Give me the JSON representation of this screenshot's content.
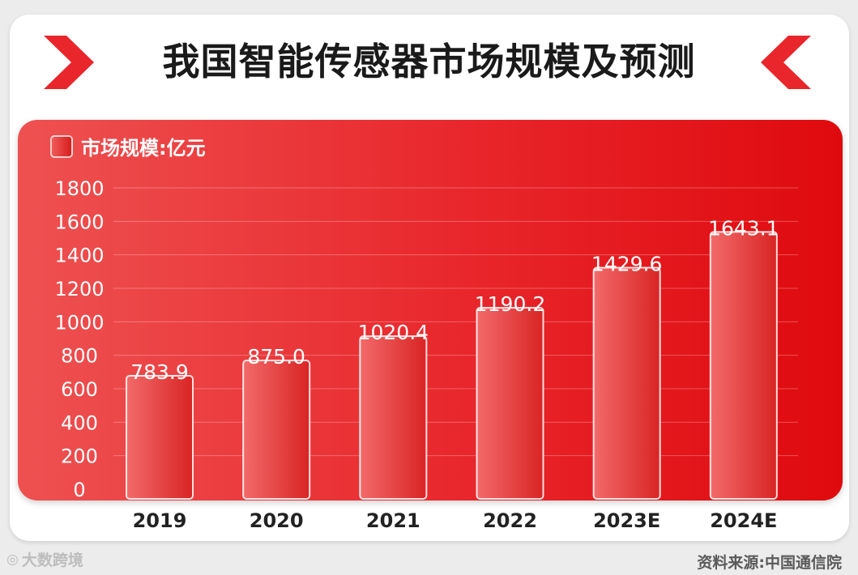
{
  "title": "我国智能传感器市场规模及预测",
  "legend": {
    "label": "市场规模:亿元"
  },
  "source": "资料来源:中国通信院",
  "watermark": {
    "icon": "camera-icon",
    "text": "大数跨境"
  },
  "colors": {
    "accent": "#e8262b",
    "title": "#1a1a1a"
  },
  "chart_data": {
    "type": "bar",
    "title": "我国智能传感器市场规模及预测",
    "categories": [
      "2019",
      "2020",
      "2021",
      "2022",
      "2023E",
      "2024E"
    ],
    "series": [
      {
        "name": "市场规模:亿元",
        "values": [
          783.9,
          875.0,
          1020.4,
          1190.2,
          1429.6,
          1643.1
        ]
      }
    ],
    "data_labels": [
      "783.9",
      "875.0",
      "1020.4",
      "1190.2",
      "1429.6",
      "1643.1"
    ],
    "yticks": [
      0,
      200,
      400,
      600,
      800,
      1000,
      1200,
      1400,
      1600,
      1800
    ],
    "ylim": [
      0,
      1800
    ],
    "xlabel": "",
    "ylabel": "",
    "grid": true,
    "legend_position": "top-left"
  }
}
